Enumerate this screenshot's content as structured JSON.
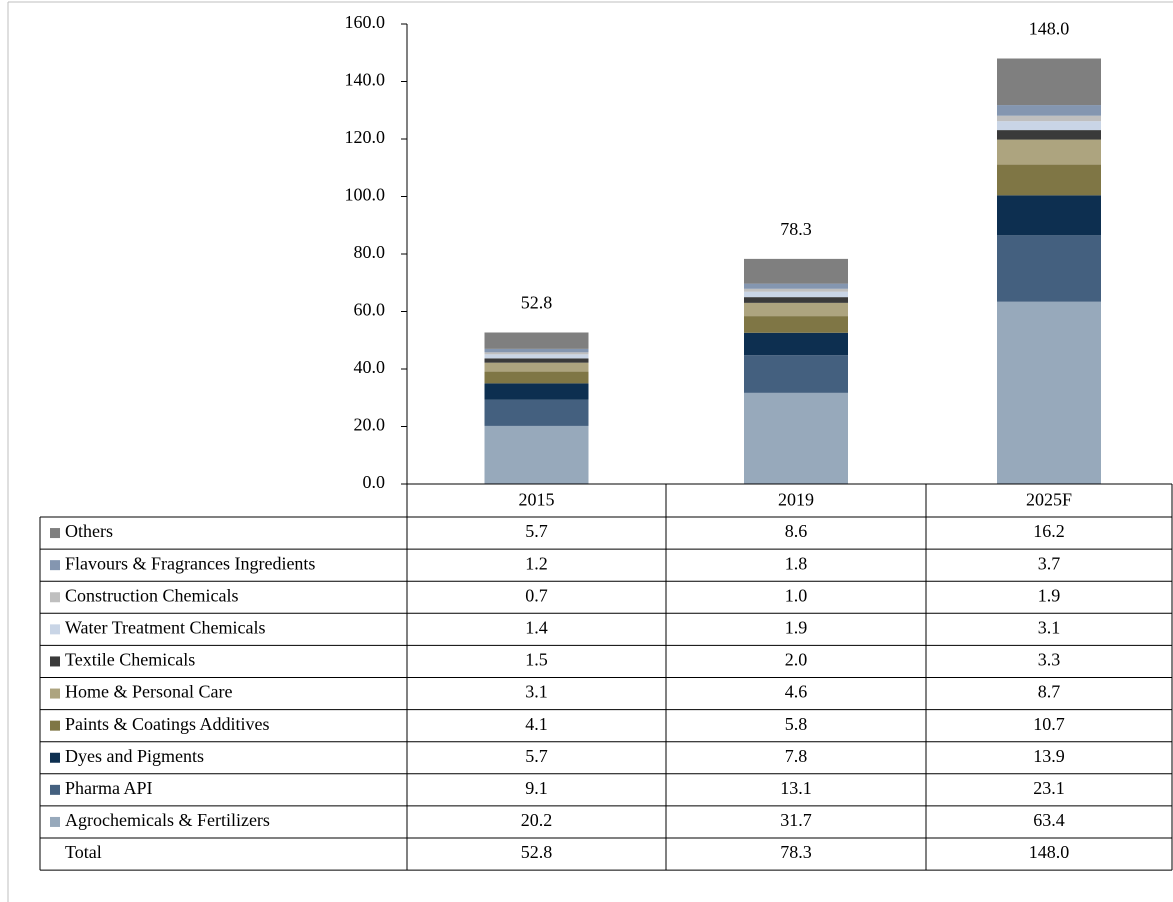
{
  "chart_data": {
    "type": "bar",
    "stacked": true,
    "categories": [
      "2015",
      "2019",
      "2025F"
    ],
    "series": [
      {
        "name": "Others",
        "color": "#7f7f7f",
        "values": [
          5.7,
          8.6,
          16.2
        ],
        "value_labels": [
          "5.7",
          "8.6",
          "16.2"
        ]
      },
      {
        "name": "Flavours & Fragrances Ingredients",
        "color": "#8496b0",
        "values": [
          1.2,
          1.8,
          3.7
        ],
        "value_labels": [
          "1.2",
          "1.8",
          "3.7"
        ]
      },
      {
        "name": "Construction Chemicals",
        "color": "#bfbfbf",
        "values": [
          0.7,
          1.0,
          1.9
        ],
        "value_labels": [
          "0.7",
          "1.0",
          "1.9"
        ]
      },
      {
        "name": "Water Treatment Chemicals",
        "color": "#c9d5e6",
        "values": [
          1.4,
          1.9,
          3.1
        ],
        "value_labels": [
          "1.4",
          "1.9",
          "3.1"
        ]
      },
      {
        "name": "Textile Chemicals",
        "color": "#3a3a3a",
        "values": [
          1.5,
          2.0,
          3.3
        ],
        "value_labels": [
          "1.5",
          "2.0",
          "3.3"
        ]
      },
      {
        "name": "Home & Personal Care",
        "color": "#ada47f",
        "values": [
          3.1,
          4.6,
          8.7
        ],
        "value_labels": [
          "3.1",
          "4.6",
          "8.7"
        ]
      },
      {
        "name": "Paints & Coatings Additives",
        "color": "#7f7645",
        "values": [
          4.1,
          5.8,
          10.7
        ],
        "value_labels": [
          "4.1",
          "5.8",
          "10.7"
        ]
      },
      {
        "name": "Dyes and Pigments",
        "color": "#0d2f50",
        "values": [
          5.7,
          7.8,
          13.9
        ],
        "value_labels": [
          "5.7",
          "7.8",
          "13.9"
        ]
      },
      {
        "name": "Pharma API",
        "color": "#44607f",
        "values": [
          9.1,
          13.1,
          23.1
        ],
        "value_labels": [
          "9.1",
          "13.1",
          "23.1"
        ]
      },
      {
        "name": "Agrochemicals & Fertilizers",
        "color": "#97a9bb",
        "values": [
          20.2,
          31.7,
          63.4
        ],
        "value_labels": [
          "20.2",
          "31.7",
          "63.4"
        ]
      }
    ],
    "totals": {
      "name": "Total",
      "values": [
        52.8,
        78.3,
        148.0
      ],
      "value_labels": [
        "52.8",
        "78.3",
        "148.0"
      ]
    },
    "ylim": [
      0,
      160
    ],
    "yticks": [
      {
        "value": 0,
        "label": "0.0"
      },
      {
        "value": 20,
        "label": "20.0"
      },
      {
        "value": 40,
        "label": "40.0"
      },
      {
        "value": 60,
        "label": "60.0"
      },
      {
        "value": 80,
        "label": "80.0"
      },
      {
        "value": 100,
        "label": "100.0"
      },
      {
        "value": 120,
        "label": "120.0"
      },
      {
        "value": 140,
        "label": "140.0"
      },
      {
        "value": 160,
        "label": "160.0"
      }
    ]
  }
}
